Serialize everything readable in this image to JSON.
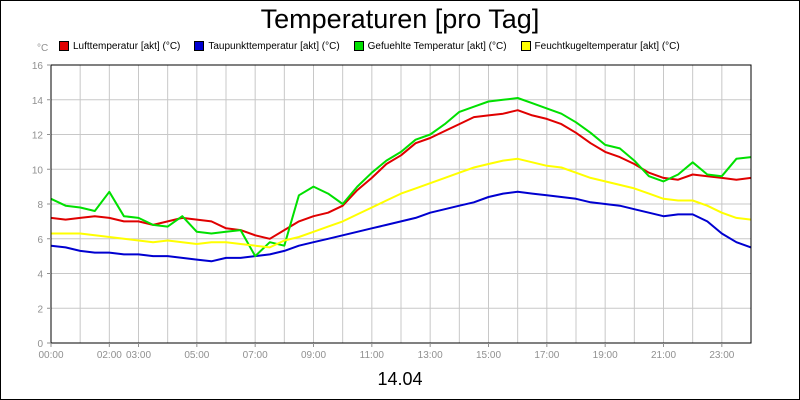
{
  "chart_data": {
    "type": "line",
    "title": "Temperaturen [pro Tag]",
    "ylabel": "°C",
    "xlabel": "14.04",
    "xlim": [
      0,
      24
    ],
    "ylim": [
      0,
      16
    ],
    "grid": true,
    "legend_position": "top",
    "y_ticks": [
      0,
      2,
      4,
      6,
      8,
      10,
      12,
      14,
      16
    ],
    "x_ticks": [
      {
        "hour": 0,
        "label": "00:00"
      },
      {
        "hour": 2,
        "label": "02:00"
      },
      {
        "hour": 3,
        "label": "03:00"
      },
      {
        "hour": 5,
        "label": "05:00"
      },
      {
        "hour": 7,
        "label": "07:00"
      },
      {
        "hour": 9,
        "label": "09:00"
      },
      {
        "hour": 11,
        "label": "11:00"
      },
      {
        "hour": 13,
        "label": "13:00"
      },
      {
        "hour": 15,
        "label": "15:00"
      },
      {
        "hour": 17,
        "label": "17:00"
      },
      {
        "hour": 19,
        "label": "19:00"
      },
      {
        "hour": 21,
        "label": "21:00"
      },
      {
        "hour": 23,
        "label": "23:00"
      }
    ],
    "x_hours": [
      0,
      0.5,
      1,
      1.5,
      2,
      2.5,
      3,
      3.5,
      4,
      4.5,
      5,
      5.5,
      6,
      6.5,
      7,
      7.5,
      8,
      8.5,
      9,
      9.5,
      10,
      10.5,
      11,
      11.5,
      12,
      12.5,
      13,
      13.5,
      14,
      14.5,
      15,
      15.5,
      16,
      16.5,
      17,
      17.5,
      18,
      18.5,
      19,
      19.5,
      20,
      20.5,
      21,
      21.5,
      22,
      22.5,
      23,
      23.5,
      24
    ],
    "series": [
      {
        "name": "Lufttemperatur [akt] (°C)",
        "color": "#e00000",
        "values": [
          7.2,
          7.1,
          7.2,
          7.3,
          7.2,
          7.0,
          7.0,
          6.8,
          7.0,
          7.2,
          7.1,
          7.0,
          6.6,
          6.5,
          6.2,
          6.0,
          6.5,
          7.0,
          7.3,
          7.5,
          7.9,
          8.8,
          9.5,
          10.3,
          10.8,
          11.5,
          11.8,
          12.2,
          12.6,
          13.0,
          13.1,
          13.2,
          13.4,
          13.1,
          12.9,
          12.6,
          12.1,
          11.5,
          11.0,
          10.7,
          10.3,
          9.8,
          9.5,
          9.4,
          9.7,
          9.6,
          9.5,
          9.4,
          9.5
        ]
      },
      {
        "name": "Taupunkttemperatur [akt] (°C)",
        "color": "#0000d0",
        "values": [
          5.6,
          5.5,
          5.3,
          5.2,
          5.2,
          5.1,
          5.1,
          5.0,
          5.0,
          4.9,
          4.8,
          4.7,
          4.9,
          4.9,
          5.0,
          5.1,
          5.3,
          5.6,
          5.8,
          6.0,
          6.2,
          6.4,
          6.6,
          6.8,
          7.0,
          7.2,
          7.5,
          7.7,
          7.9,
          8.1,
          8.4,
          8.6,
          8.7,
          8.6,
          8.5,
          8.4,
          8.3,
          8.1,
          8.0,
          7.9,
          7.7,
          7.5,
          7.3,
          7.4,
          7.4,
          7.0,
          6.3,
          5.8,
          5.5
        ]
      },
      {
        "name": "Gefuehlte Temperatur [akt] (°C)",
        "color": "#00e000",
        "values": [
          8.3,
          7.9,
          7.8,
          7.6,
          8.7,
          7.3,
          7.2,
          6.8,
          6.7,
          7.3,
          6.4,
          6.3,
          6.4,
          6.5,
          5.0,
          5.8,
          5.6,
          8.5,
          9.0,
          8.6,
          8.0,
          9.0,
          9.8,
          10.5,
          11.0,
          11.7,
          12.0,
          12.6,
          13.3,
          13.6,
          13.9,
          14.0,
          14.1,
          13.8,
          13.5,
          13.2,
          12.7,
          12.1,
          11.4,
          11.2,
          10.5,
          9.6,
          9.3,
          9.7,
          10.4,
          9.7,
          9.6,
          10.6,
          10.7
        ]
      },
      {
        "name": "Feuchtkugeltemperatur [akt] (°C)",
        "color": "#ffff00",
        "values": [
          6.3,
          6.3,
          6.3,
          6.2,
          6.1,
          6.0,
          5.9,
          5.8,
          5.9,
          5.8,
          5.7,
          5.8,
          5.8,
          5.7,
          5.6,
          5.5,
          5.9,
          6.1,
          6.4,
          6.7,
          7.0,
          7.4,
          7.8,
          8.2,
          8.6,
          8.9,
          9.2,
          9.5,
          9.8,
          10.1,
          10.3,
          10.5,
          10.6,
          10.4,
          10.2,
          10.1,
          9.8,
          9.5,
          9.3,
          9.1,
          8.9,
          8.6,
          8.3,
          8.2,
          8.2,
          7.9,
          7.5,
          7.2,
          7.1
        ]
      }
    ]
  }
}
